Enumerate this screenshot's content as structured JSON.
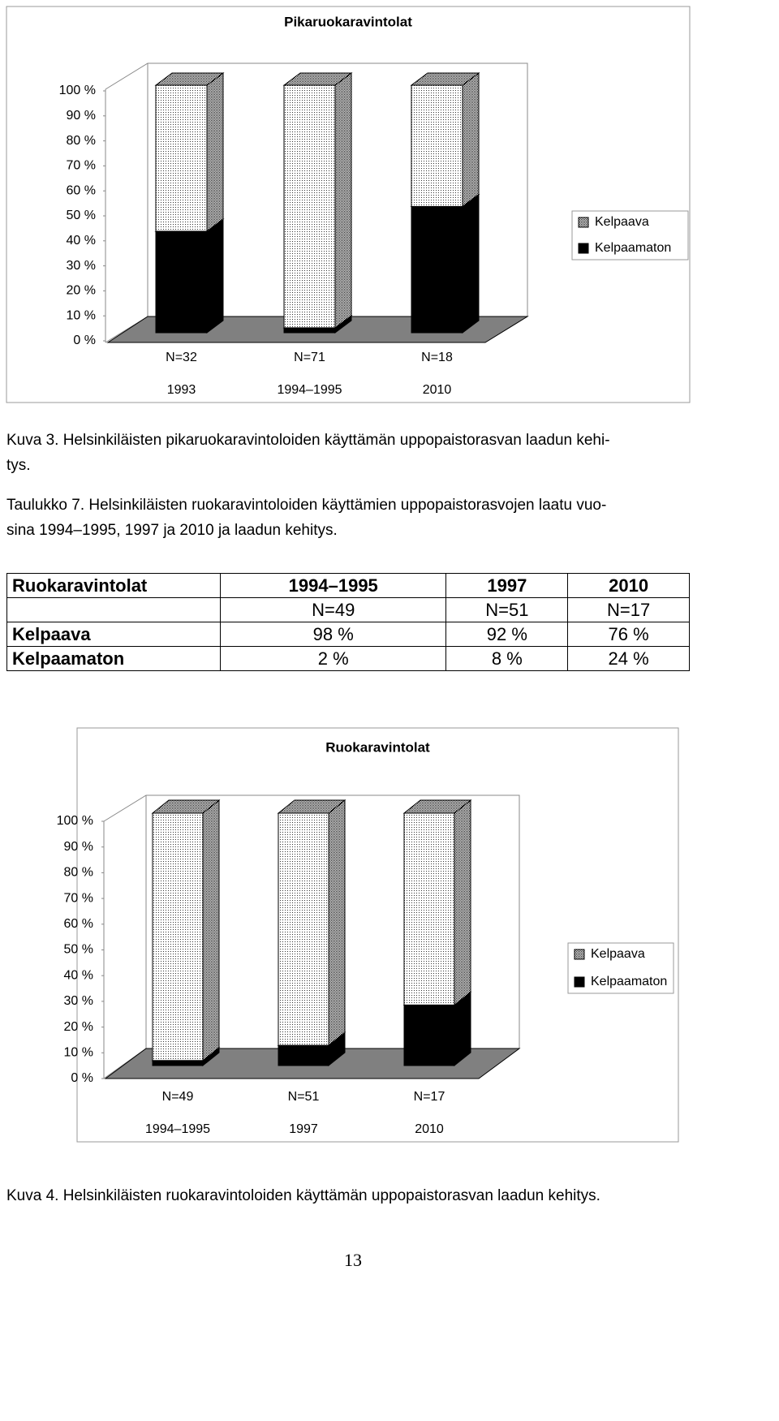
{
  "chart_data": [
    {
      "type": "bar3d-stacked",
      "title": "Pikaruokaravintolat",
      "categories": [
        "1993",
        "1994–1995",
        "2010"
      ],
      "category_counts": [
        "N=32",
        "N=71",
        "N=18"
      ],
      "series": [
        {
          "name": "Kelpaava",
          "color": "#ffffff",
          "pattern": "dots",
          "values": [
            59,
            98,
            49
          ]
        },
        {
          "name": "Kelpaamaton",
          "color": "#000000",
          "values": [
            41,
            2,
            51
          ]
        }
      ],
      "ylim": [
        0,
        100
      ],
      "yticks": [
        {
          "value": 0,
          "label": "0 %"
        },
        {
          "value": 10,
          "label": "10 %"
        },
        {
          "value": 20,
          "label": "20 %"
        },
        {
          "value": 30,
          "label": "30 %"
        },
        {
          "value": 40,
          "label": "40 %"
        },
        {
          "value": 50,
          "label": "50 %"
        },
        {
          "value": 60,
          "label": "60 %"
        },
        {
          "value": 70,
          "label": "70 %"
        },
        {
          "value": 80,
          "label": "80 %"
        },
        {
          "value": 90,
          "label": "90 %"
        },
        {
          "value": 100,
          "label": "100 %"
        }
      ],
      "grid": false,
      "legend": "right"
    },
    {
      "type": "bar3d-stacked",
      "title": "Ruokaravintolat",
      "categories": [
        "1994–1995",
        "1997",
        "2010"
      ],
      "category_counts": [
        "N=49",
        "N=51",
        "N=17"
      ],
      "series": [
        {
          "name": "Kelpaava",
          "color": "#ffffff",
          "pattern": "dots",
          "values": [
            98,
            92,
            76
          ]
        },
        {
          "name": "Kelpaamaton",
          "color": "#000000",
          "values": [
            2,
            8,
            24
          ]
        }
      ],
      "ylim": [
        0,
        100
      ],
      "yticks": [
        {
          "value": 0,
          "label": "0 %"
        },
        {
          "value": 10,
          "label": "10 %"
        },
        {
          "value": 20,
          "label": "20 %"
        },
        {
          "value": 30,
          "label": "30 %"
        },
        {
          "value": 40,
          "label": "40 %"
        },
        {
          "value": 50,
          "label": "50 %"
        },
        {
          "value": 60,
          "label": "60 %"
        },
        {
          "value": 70,
          "label": "70 %"
        },
        {
          "value": 80,
          "label": "80 %"
        },
        {
          "value": 90,
          "label": "90 %"
        },
        {
          "value": 100,
          "label": "100 %"
        }
      ],
      "grid": false,
      "legend": "right"
    }
  ],
  "captions": [
    [
      "Kuva 3. Helsinkiläisten pikaruokaravintoloiden käyttämän uppopaistorasvan laadun kehi-",
      "tys."
    ],
    [
      "Kuva 4. Helsinkiläisten ruokaravintoloiden käyttämän uppopaistorasvan laadun kehitys."
    ]
  ],
  "table_caption": [
    "Taulukko 7. Helsinkiläisten ruokaravintoloiden käyttämien uppopaistorasvojen laatu vuo-",
    "sina 1994–1995, 1997 ja 2010 ja laadun kehitys."
  ],
  "table": {
    "rows": [
      [
        "Ruokaravintolat",
        "1994–1995",
        "1997",
        "2010"
      ],
      [
        null,
        "N=49",
        "N=51",
        "N=17"
      ],
      [
        "Kelpaava",
        "98 %",
        "92 %",
        "76 %"
      ],
      [
        "Kelpaamaton",
        "2 %",
        "8 %",
        "24 %"
      ]
    ]
  },
  "page_number": "13"
}
